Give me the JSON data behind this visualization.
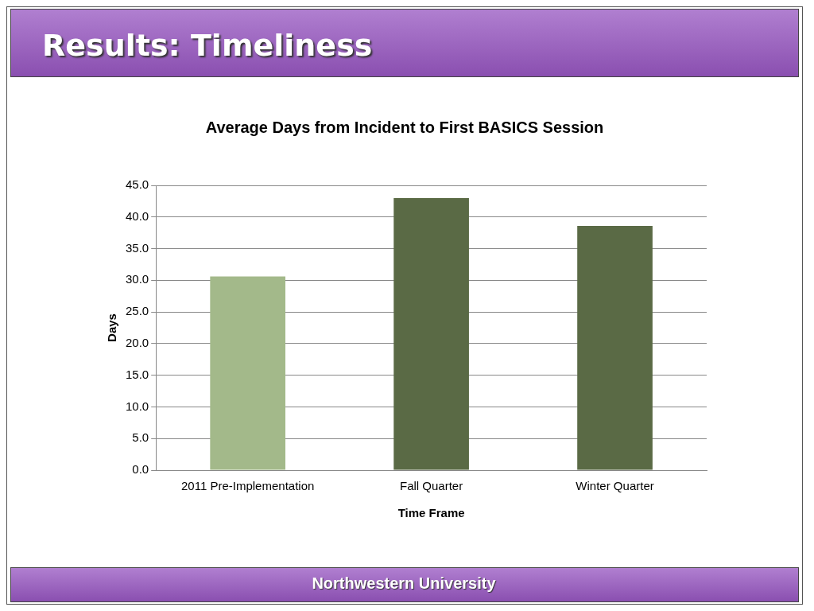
{
  "chart_data": {
    "type": "bar",
    "title": "Results: Timeliness",
    "subtitle": "Average Days from Incident to First BASICS Session",
    "xlabel": "Time Frame",
    "ylabel": "Days",
    "categories": [
      "2011 Pre-Implementation",
      "Fall Quarter",
      "Winter Quarter"
    ],
    "values": [
      30.6,
      43.0,
      38.6
    ],
    "colors": [
      "#a3b98a",
      "#5a6a45",
      "#5a6a45"
    ],
    "ylim": [
      0,
      45
    ],
    "yticks": [
      {
        "value": 0,
        "label": "0.0"
      },
      {
        "value": 5,
        "label": "5.0"
      },
      {
        "value": 10,
        "label": "10.0"
      },
      {
        "value": 15,
        "label": "15.0"
      },
      {
        "value": 20,
        "label": "20.0"
      },
      {
        "value": 25,
        "label": "25.0"
      },
      {
        "value": 30,
        "label": "30.0"
      },
      {
        "value": 35,
        "label": "35.0"
      },
      {
        "value": 40,
        "label": "40.0"
      },
      {
        "value": 45,
        "label": "45.0"
      }
    ],
    "grid": "y",
    "legend": false,
    "annotations": [
      "Northwestern University"
    ]
  }
}
